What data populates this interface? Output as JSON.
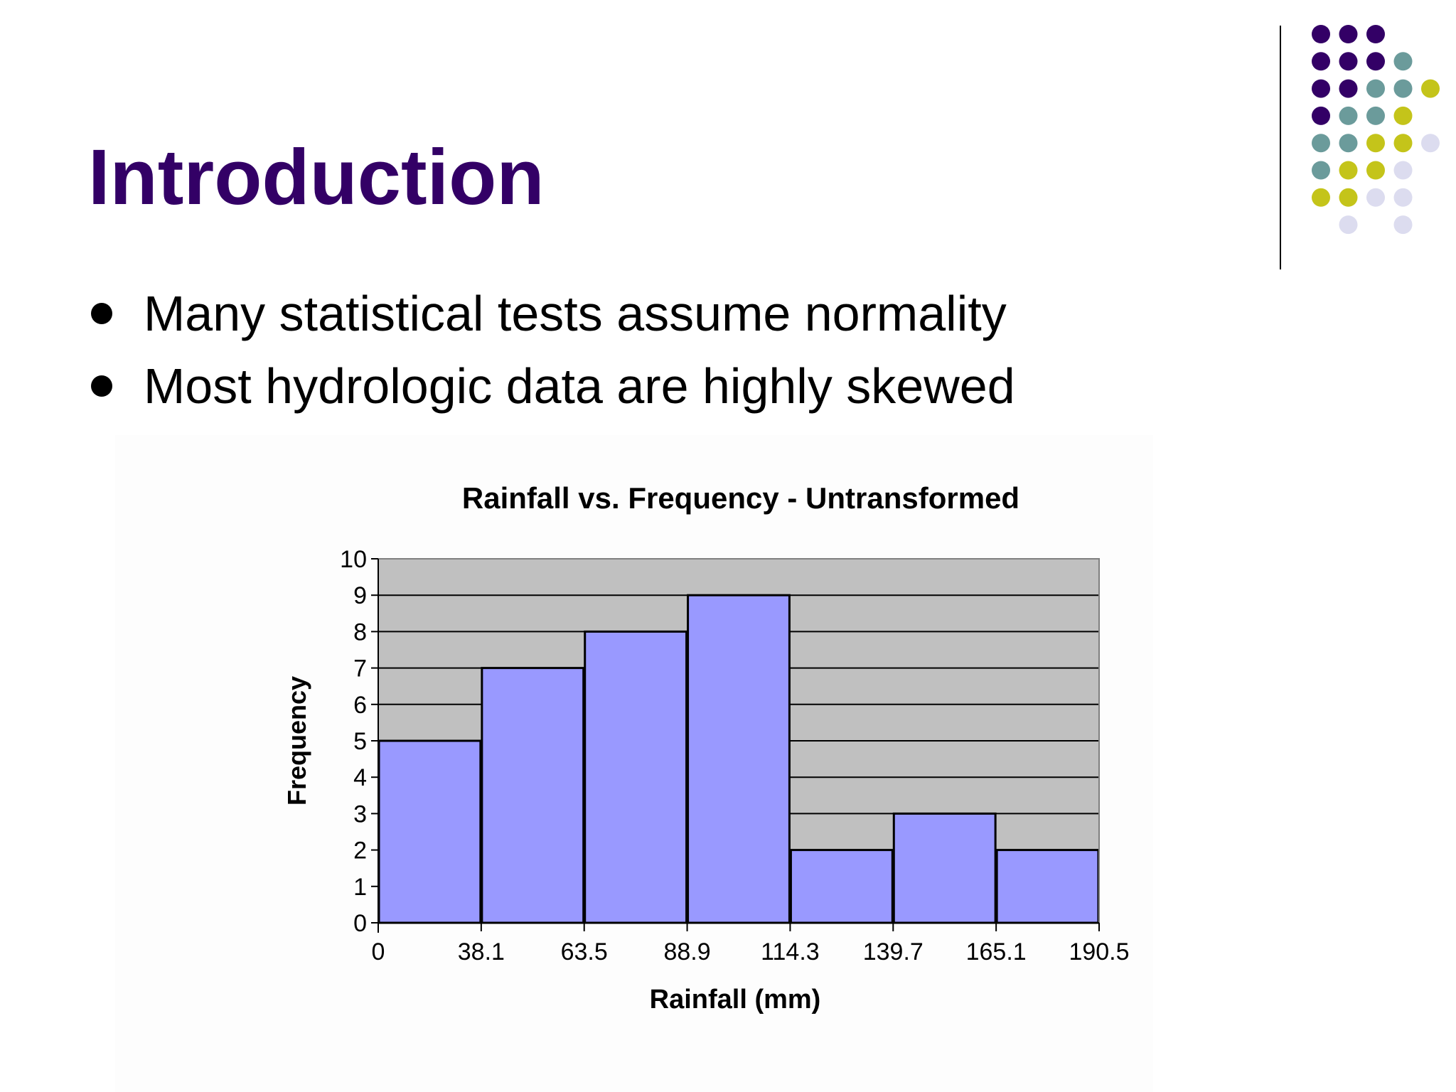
{
  "slide": {
    "title": "Introduction",
    "bullets": [
      "Many statistical tests assume normality",
      "Most hydrologic data are highly skewed"
    ]
  },
  "colors": {
    "title": "#330066",
    "bar_fill": "#9999ff",
    "plot_area": "#c0c0c0",
    "grid": "#000000"
  },
  "decoration": {
    "dot_grid_colors": [
      "#330066",
      "#6b9b9b",
      "#c4c41a",
      "#dcdcef"
    ]
  },
  "chart_data": {
    "type": "bar",
    "title": "Rainfall vs. Frequency - Untransformed",
    "xlabel": "Rainfall (mm)",
    "ylabel": "Frequency",
    "x_ticks": [
      "0",
      "38.1",
      "63.5",
      "88.9",
      "114.3",
      "139.7",
      "165.1",
      "190.5"
    ],
    "values": [
      5,
      7,
      8,
      9,
      2,
      3,
      2
    ],
    "ylim": [
      0,
      10
    ],
    "y_ticks": [
      0,
      1,
      2,
      3,
      4,
      5,
      6,
      7,
      8,
      9,
      10
    ],
    "grid": true,
    "legend": "none"
  }
}
